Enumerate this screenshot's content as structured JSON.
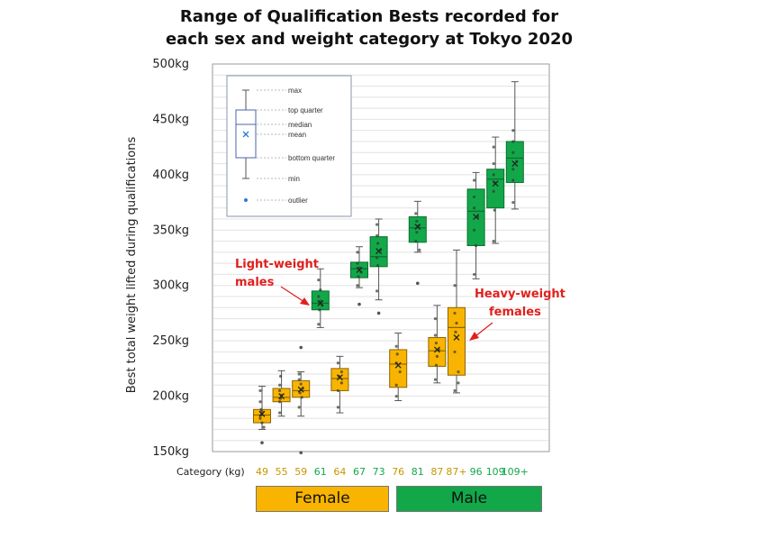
{
  "chart_data": {
    "type": "box",
    "title_lines": [
      "Range of Qualification Bests recorded for",
      "each sex and weight category at Tokyo 2020"
    ],
    "ylabel": "Best total weight  lifted during qualifications",
    "xlabel": "Category (kg)",
    "ylim": [
      150,
      500
    ],
    "yticks": [
      "500kg",
      "450kg",
      "400kg",
      "350kg",
      "300kg",
      "250kg",
      "200kg",
      "150kg"
    ],
    "ytick_values": [
      500,
      450,
      400,
      350,
      300,
      250,
      200,
      150
    ],
    "grid": true,
    "colors": {
      "female": "#f8b400",
      "male": "#12a84a",
      "annotation": "#e0201c"
    },
    "categories": [
      {
        "label": "49",
        "sex": "female",
        "min": 170,
        "q1": 176,
        "median": 183,
        "q3": 188,
        "max": 209,
        "mean": 184,
        "outliers": [
          158
        ],
        "points": [
          172,
          176,
          180,
          183,
          186,
          188,
          195,
          205
        ]
      },
      {
        "label": "55",
        "sex": "female",
        "min": 182,
        "q1": 195,
        "median": 199,
        "q3": 207,
        "max": 223,
        "mean": 200,
        "outliers": [],
        "points": [
          185,
          195,
          198,
          201,
          205,
          210,
          218
        ]
      },
      {
        "label": "59",
        "sex": "female",
        "min": 182,
        "q1": 199,
        "median": 205,
        "q3": 214,
        "max": 222,
        "mean": 206,
        "outliers": [
          149,
          244
        ],
        "points": [
          190,
          199,
          203,
          207,
          211,
          215,
          220
        ]
      },
      {
        "label": "61",
        "sex": "male",
        "min": 262,
        "q1": 278,
        "median": 284,
        "q3": 295,
        "max": 315,
        "mean": 284,
        "outliers": [],
        "points": [
          265,
          278,
          282,
          286,
          290,
          296,
          305
        ]
      },
      {
        "label": "64",
        "sex": "female",
        "min": 185,
        "q1": 205,
        "median": 216,
        "q3": 225,
        "max": 236,
        "mean": 217,
        "outliers": [],
        "points": [
          190,
          205,
          212,
          218,
          222,
          230
        ]
      },
      {
        "label": "67",
        "sex": "male",
        "min": 298,
        "q1": 307,
        "median": 315,
        "q3": 321,
        "max": 335,
        "mean": 314,
        "outliers": [
          283
        ],
        "points": [
          300,
          308,
          312,
          316,
          320,
          330
        ]
      },
      {
        "label": "73",
        "sex": "male",
        "min": 287,
        "q1": 317,
        "median": 326,
        "q3": 344,
        "max": 360,
        "mean": 331,
        "outliers": [
          275
        ],
        "points": [
          295,
          318,
          325,
          332,
          338,
          345,
          355
        ]
      },
      {
        "label": "76",
        "sex": "female",
        "min": 196,
        "q1": 208,
        "median": 229,
        "q3": 242,
        "max": 257,
        "mean": 228,
        "outliers": [],
        "points": [
          200,
          210,
          222,
          230,
          238,
          245
        ]
      },
      {
        "label": "81",
        "sex": "male",
        "min": 330,
        "q1": 339,
        "median": 352,
        "q3": 362,
        "max": 376,
        "mean": 353,
        "outliers": [
          302
        ],
        "points": [
          332,
          340,
          348,
          354,
          358,
          365
        ]
      },
      {
        "label": "87",
        "sex": "female",
        "min": 212,
        "q1": 227,
        "median": 241,
        "q3": 253,
        "max": 282,
        "mean": 242,
        "outliers": [],
        "points": [
          215,
          228,
          236,
          242,
          248,
          255,
          270
        ]
      },
      {
        "label": "87+",
        "sex": "female",
        "min": 203,
        "q1": 219,
        "median": 262,
        "q3": 280,
        "max": 332,
        "mean": 253,
        "outliers": [],
        "points": [
          205,
          212,
          222,
          240,
          258,
          266,
          275,
          300
        ]
      },
      {
        "label": "96",
        "sex": "male",
        "min": 306,
        "q1": 336,
        "median": 367,
        "q3": 387,
        "max": 402,
        "mean": 362,
        "outliers": [],
        "points": [
          310,
          336,
          350,
          362,
          370,
          380,
          395
        ]
      },
      {
        "label": "109",
        "sex": "male",
        "min": 338,
        "q1": 370,
        "median": 396,
        "q3": 405,
        "max": 434,
        "mean": 392,
        "outliers": [],
        "points": [
          340,
          368,
          385,
          393,
          400,
          410,
          425
        ]
      },
      {
        "label": "109+",
        "sex": "male",
        "min": 369,
        "q1": 393,
        "median": 415,
        "q3": 430,
        "max": 484,
        "mean": 410,
        "outliers": [],
        "points": [
          375,
          395,
          405,
          412,
          420,
          430,
          440
        ]
      }
    ],
    "legend": {
      "max": "max",
      "top_quarter": "top quarter",
      "median": "median",
      "mean": "mean",
      "bottom_quarter": "bottom quarter",
      "min": "min",
      "outlier": "outlier"
    },
    "annotations": {
      "light_line1": "Light-weight",
      "light_line2": "males",
      "heavy_line1": "Heavy-weight",
      "heavy_line2": "females"
    },
    "groups": {
      "female": "Female",
      "male": "Male"
    }
  }
}
